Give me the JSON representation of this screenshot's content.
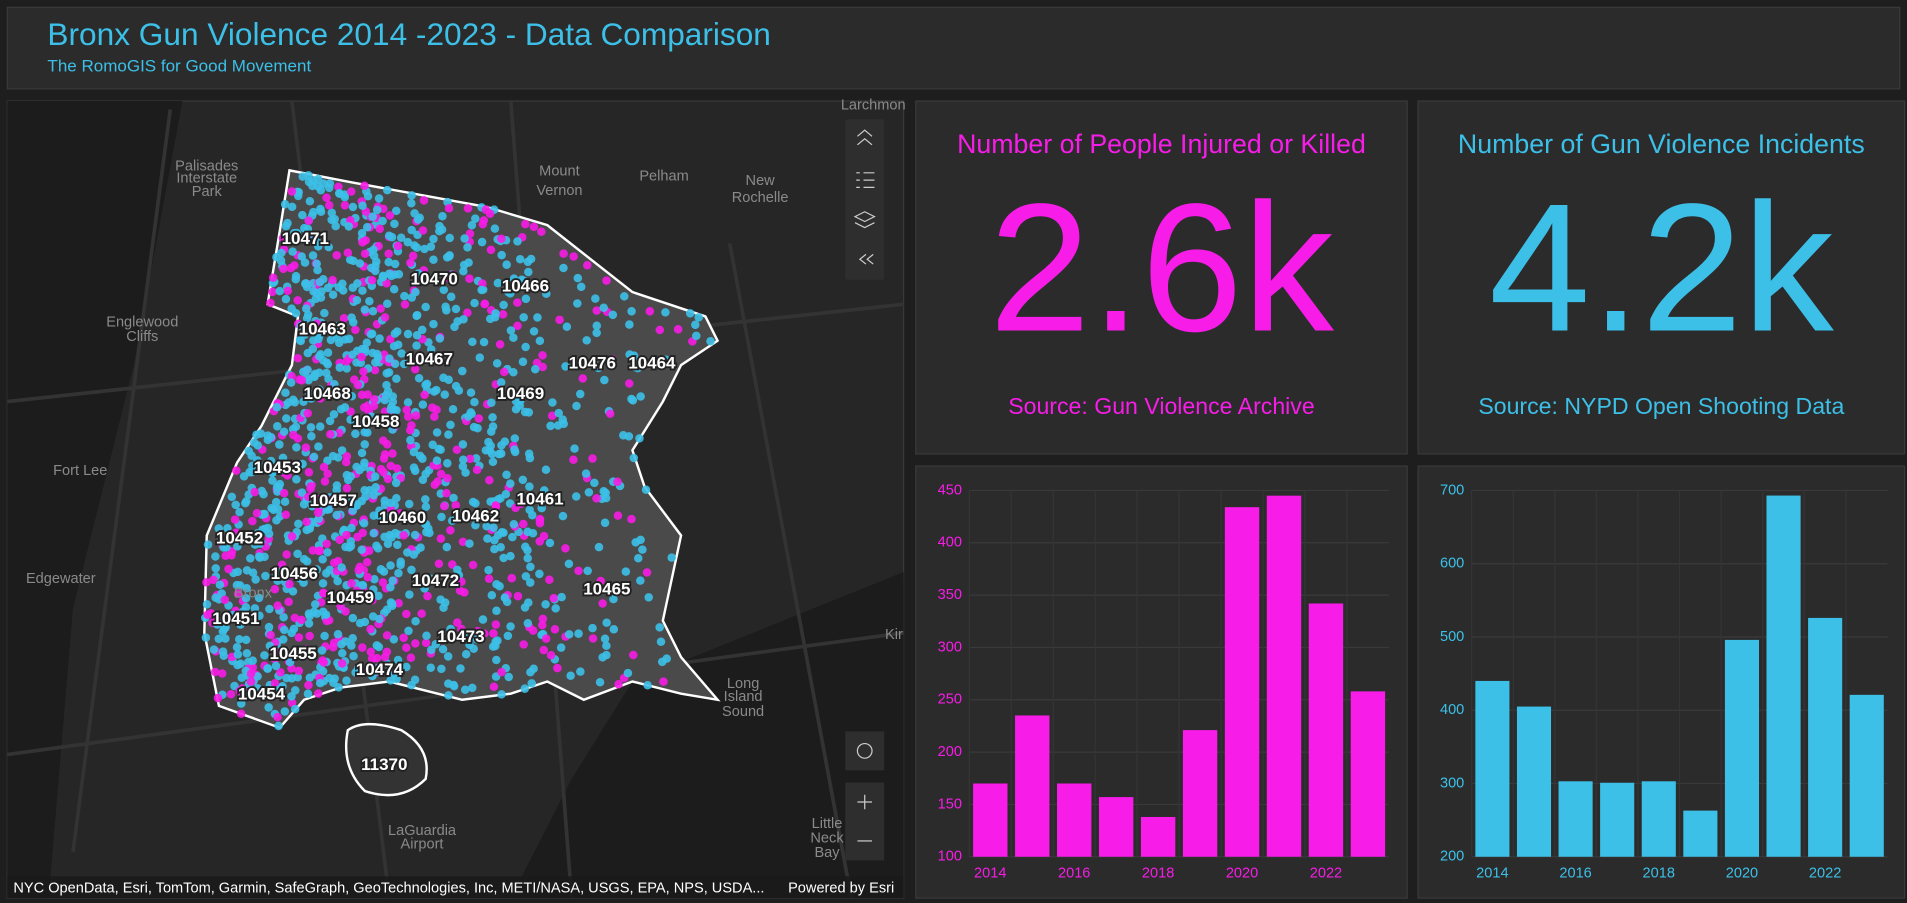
{
  "header": {
    "title": "Bronx Gun Violence 2014 -2023 - Data Comparison",
    "subtitle": "The RomoGIS for Good Movement"
  },
  "map": {
    "place_labels": [
      "Larchmon",
      "Palisades",
      "Interstate",
      "Park",
      "Mount",
      "Vernon",
      "Pelham",
      "New",
      "Rochelle",
      "Englewood",
      "Cliffs",
      "Fort Lee",
      "Edgewater",
      "Bronx",
      "Long",
      "Island",
      "Sound",
      "LaGuardia",
      "Airport",
      "Little",
      "Neck",
      "Bay",
      "Kir"
    ],
    "zip_labels": [
      "10471",
      "10470",
      "10466",
      "10463",
      "10467",
      "10476",
      "10464",
      "10468",
      "10469",
      "10458",
      "10453",
      "10457",
      "10461",
      "10460",
      "10462",
      "10452",
      "10456",
      "10472",
      "10465",
      "10459",
      "10451",
      "10473",
      "10455",
      "10474",
      "10454",
      "11370"
    ],
    "attribution": "NYC OpenData, Esri, TomTom, Garmin, SafeGraph, GeoTechnologies, Inc, METI/NASA, USGS, EPA, NPS, USDA...",
    "powered_by": "Powered by Esri"
  },
  "indicators": [
    {
      "title": "Number of People Injured or Killed",
      "value": "2.6k",
      "source": "Source: Gun Violence Archive",
      "color": "#f81ce8"
    },
    {
      "title": "Number of Gun Violence Incidents",
      "value": "4.2k",
      "source": "Source: NYPD Open Shooting Data",
      "color": "#3cc0e8"
    }
  ],
  "chart_data": [
    {
      "type": "bar",
      "color": "#f81ce8",
      "categories": [
        "2014",
        null,
        "2016",
        null,
        "2018",
        null,
        "2020",
        null,
        "2022",
        null
      ],
      "values": [
        170,
        235,
        170,
        157,
        138,
        221,
        434,
        445,
        342,
        258
      ],
      "ylim": [
        100,
        450
      ],
      "yticks": [
        100,
        150,
        200,
        250,
        300,
        350,
        400,
        450
      ],
      "grid": true
    },
    {
      "type": "bar",
      "color": "#3cc0e8",
      "categories": [
        "2014",
        null,
        "2016",
        null,
        "2018",
        null,
        "2020",
        null,
        "2022",
        null
      ],
      "values": [
        440,
        405,
        303,
        301,
        303,
        263,
        496,
        693,
        526,
        421
      ],
      "ylim": [
        200,
        700
      ],
      "yticks": [
        200,
        300,
        400,
        500,
        600,
        700
      ],
      "grid": true
    }
  ]
}
